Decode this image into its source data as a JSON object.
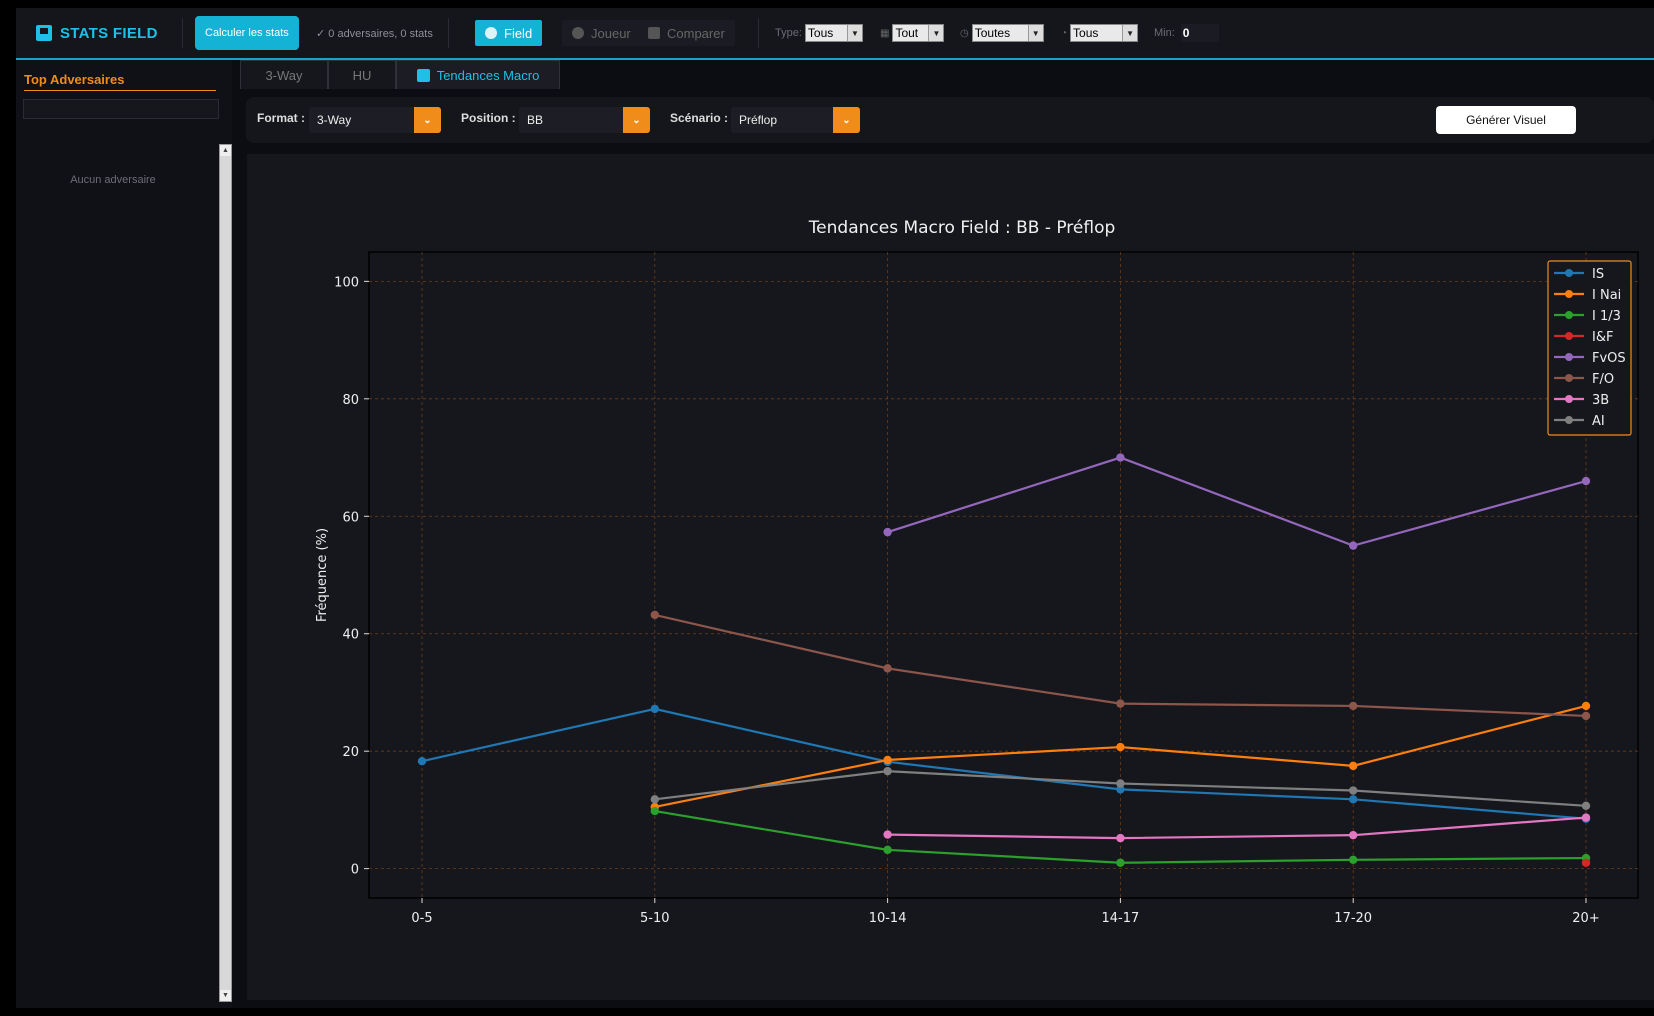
{
  "topbar": {
    "brand": "STATS FIELD",
    "calc_button": "Calculer les stats",
    "status": "✓ 0 adversaires, 0 stats",
    "nav": {
      "field": "Field",
      "joueur": "Joueur",
      "comparer": "Comparer"
    },
    "filters": {
      "type_label": "Type:",
      "type_value": "Tous",
      "f2_value": "Tout",
      "f3_value": "Toutes",
      "f4_value": "Tous",
      "min_label": "Min:",
      "min_value": "0"
    }
  },
  "sidebar": {
    "title": "Top Adversaires",
    "empty_text": "Aucun adversaire"
  },
  "tabs": {
    "three_way": "3-Way",
    "hu": "HU",
    "macro": "Tendances Macro"
  },
  "controls": {
    "format_label": "Format :",
    "format_value": "3-Way",
    "position_label": "Position :",
    "position_value": "BB",
    "scenario_label": "Scénario :",
    "scenario_value": "Préflop",
    "generate_button": "Générer Visuel"
  },
  "chart_data": {
    "type": "line",
    "title": "Tendances Macro Field : BB - Préflop",
    "xlabel": "",
    "ylabel": "Fréquence (%)",
    "categories": [
      "0-5",
      "5-10",
      "10-14",
      "14-17",
      "17-20",
      "20+"
    ],
    "y_ticks": [
      0,
      20,
      40,
      60,
      80,
      100
    ],
    "ylim": [
      -5,
      105
    ],
    "grid": true,
    "legend_position": "top-right",
    "series": [
      {
        "name": "IS",
        "color": "#1f77b4",
        "values": [
          18.3,
          27.2,
          18.2,
          13.5,
          11.8,
          8.5
        ]
      },
      {
        "name": "I Nai",
        "color": "#ff7f0e",
        "values": [
          null,
          10.5,
          18.5,
          20.7,
          17.5,
          27.7
        ]
      },
      {
        "name": "I 1/3",
        "color": "#2ca02c",
        "values": [
          null,
          9.8,
          3.2,
          1.0,
          1.5,
          1.8
        ]
      },
      {
        "name": "I&F",
        "color": "#d62728",
        "values": [
          null,
          null,
          null,
          null,
          null,
          1.0
        ]
      },
      {
        "name": "FvOS",
        "color": "#9467bd",
        "values": [
          null,
          null,
          57.3,
          70.0,
          55.0,
          66.0
        ]
      },
      {
        "name": "F/O",
        "color": "#8c564b",
        "values": [
          null,
          43.2,
          34.1,
          28.1,
          27.7,
          26.0
        ]
      },
      {
        "name": "3B",
        "color": "#e377c2",
        "values": [
          null,
          null,
          5.8,
          5.2,
          5.7,
          8.7
        ]
      },
      {
        "name": "AI",
        "color": "#7f7f7f",
        "values": [
          null,
          11.8,
          16.6,
          14.5,
          13.3,
          10.7
        ]
      }
    ]
  }
}
